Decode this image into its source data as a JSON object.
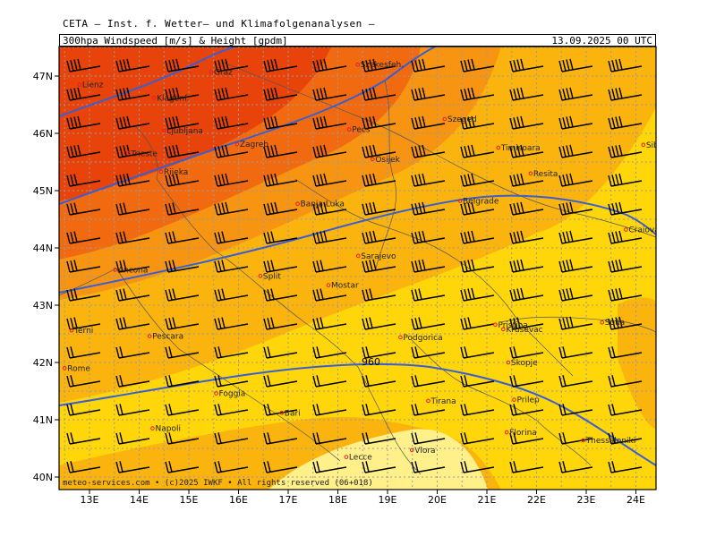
{
  "header": {
    "institute": "CETA — Inst. f. Wetter— und Klimafolgenanalysen —",
    "parameter": "300hpa Windspeed [m/s] & Height [gpdm]",
    "valid_time": "13.09.2025 00 UTC"
  },
  "footer": {
    "credit": "meteo-services.com • (c)2025 IWKF • All rights reserved (06+018)"
  },
  "axes": {
    "longitude_labels": [
      "13E",
      "14E",
      "15E",
      "16E",
      "17E",
      "18E",
      "19E",
      "20E",
      "21E",
      "22E",
      "23E",
      "24E"
    ],
    "latitude_labels": [
      "47N",
      "46N",
      "45N",
      "44N",
      "43N",
      "42N",
      "41N",
      "40N"
    ]
  },
  "contour_label": "960",
  "colors": {
    "band_darkest": "#e8430a",
    "band_dark": "#f26a0f",
    "band_mid_dark": "#f79412",
    "band_mid": "#fbb40d",
    "band_light": "#ffd60a",
    "band_lightest": "#fff08a",
    "height_contour": "#3a5fd0",
    "city_marker": "#e0202a"
  },
  "cities": [
    {
      "name": "Lienz"
    },
    {
      "name": "Graz"
    },
    {
      "name": "Szekesfeh."
    },
    {
      "name": "Klagenf."
    },
    {
      "name": "Ljubljana"
    },
    {
      "name": "Szeged"
    },
    {
      "name": "Pecs"
    },
    {
      "name": "Trieste"
    },
    {
      "name": "Zagreb"
    },
    {
      "name": "Timisoara"
    },
    {
      "name": "Sibiu"
    },
    {
      "name": "Rijeka"
    },
    {
      "name": "Osijek"
    },
    {
      "name": "Resita"
    },
    {
      "name": "Banja Luka"
    },
    {
      "name": "Belgrade"
    },
    {
      "name": "Craiova"
    },
    {
      "name": "Sarajevo"
    },
    {
      "name": "Ancona"
    },
    {
      "name": "Split"
    },
    {
      "name": "Mostar"
    },
    {
      "name": "Terni"
    },
    {
      "name": "Pescara"
    },
    {
      "name": "Krusevac"
    },
    {
      "name": "Pristina"
    },
    {
      "name": "Sofia"
    },
    {
      "name": "Podgorica"
    },
    {
      "name": "Skopje"
    },
    {
      "name": "Rome"
    },
    {
      "name": "Foggia"
    },
    {
      "name": "Tirana"
    },
    {
      "name": "Prilep"
    },
    {
      "name": "Bari"
    },
    {
      "name": "Napoli"
    },
    {
      "name": "Florina"
    },
    {
      "name": "Thessaloniki"
    },
    {
      "name": "Lecce"
    },
    {
      "name": "Vlora"
    }
  ]
}
